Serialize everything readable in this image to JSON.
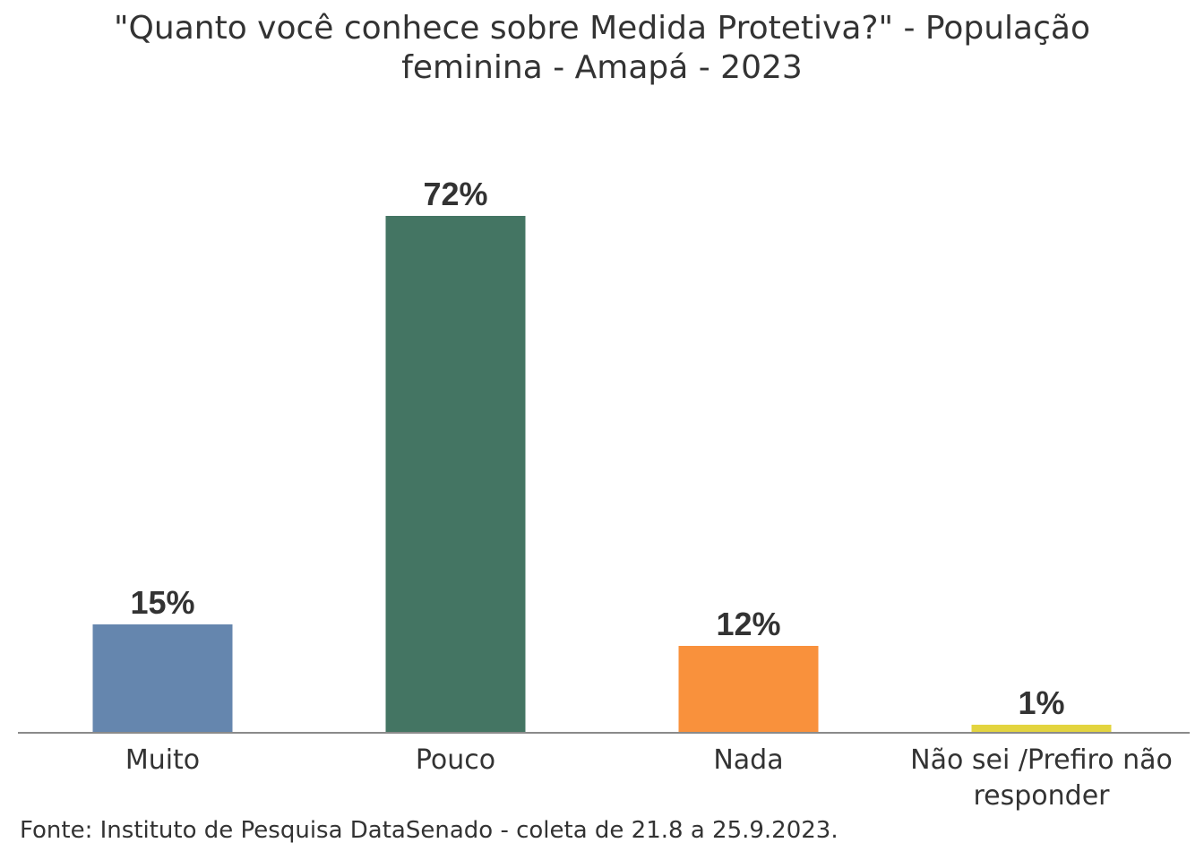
{
  "chart_data": {
    "type": "bar",
    "title_lines": [
      "\"Quanto você conhece sobre Medida Protetiva?\" - População",
      "feminina - Amapá - 2023"
    ],
    "categories": [
      [
        "Muito"
      ],
      [
        "Pouco"
      ],
      [
        "Nada"
      ],
      [
        "Não sei /Prefiro não",
        "responder"
      ]
    ],
    "values": [
      15,
      72,
      12,
      1
    ],
    "value_labels": [
      "15%",
      "72%",
      "12%",
      "1%"
    ],
    "colors": [
      "#6586ae",
      "#447563",
      "#f9913c",
      "#e3d43f"
    ],
    "xlabel": "",
    "ylabel": "",
    "ylim": [
      0,
      100
    ],
    "grid": false,
    "legend": "none"
  },
  "source": "Fonte: Instituto de Pesquisa DataSenado - coleta de 21.8 a 25.9.2023."
}
